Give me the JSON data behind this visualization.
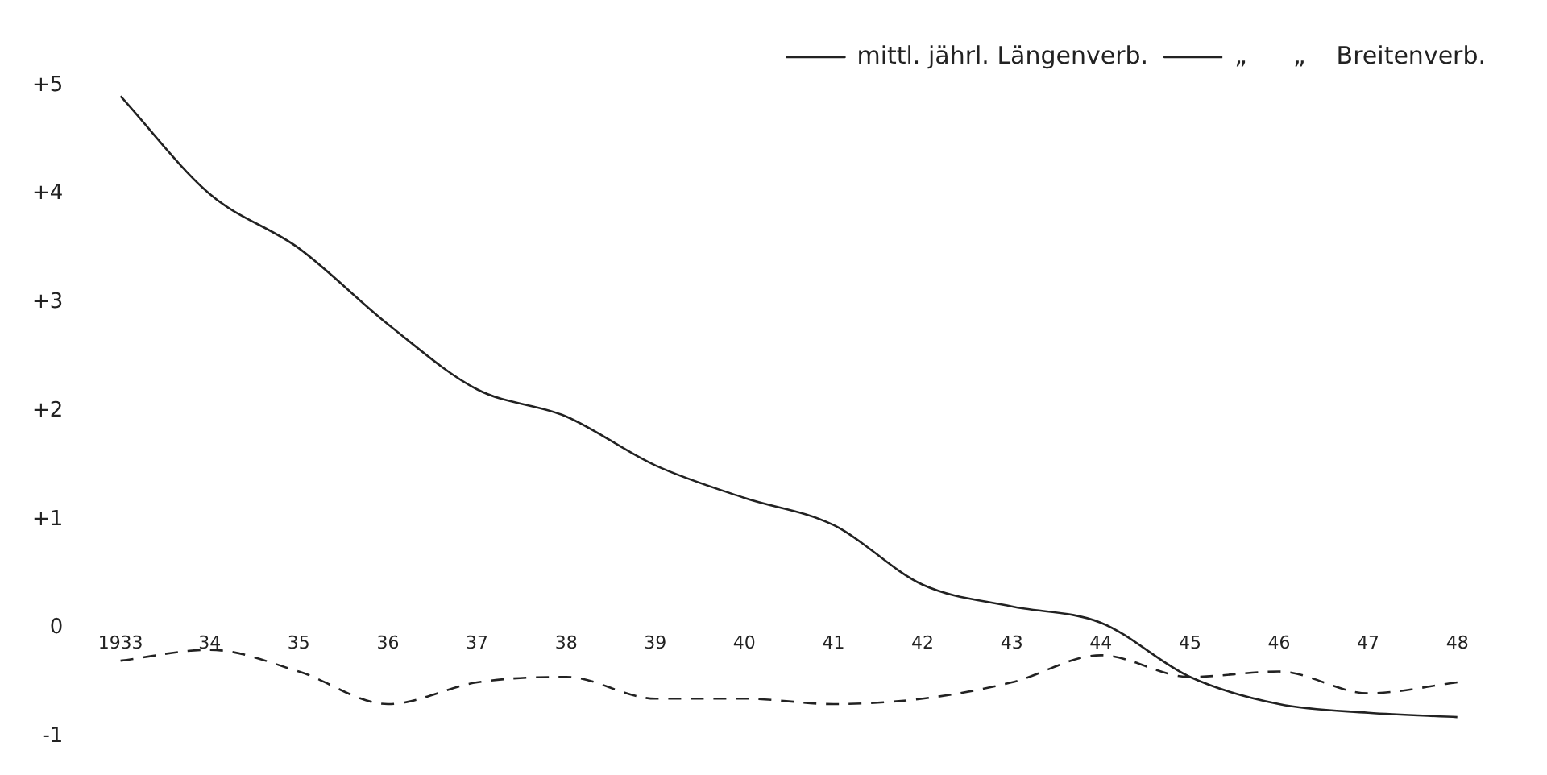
{
  "chart_data": {
    "type": "line",
    "categories": [
      "1933",
      "34",
      "35",
      "36",
      "37",
      "38",
      "39",
      "40",
      "41",
      "42",
      "43",
      "44",
      "45",
      "46",
      "47",
      "48"
    ],
    "series": [
      {
        "name": "mittl. jährl. Längenverb.",
        "color": "#222222",
        "line_style": "solid",
        "values": [
          4.9,
          4.0,
          3.5,
          2.8,
          2.2,
          1.95,
          1.5,
          1.2,
          0.95,
          0.4,
          0.2,
          0.05,
          -0.45,
          -0.7,
          -0.78,
          -0.82
        ]
      },
      {
        "name": "„      „    Breitenverb.",
        "color": "#222222",
        "line_style": "dashed",
        "values": [
          -0.3,
          -0.2,
          -0.4,
          -0.7,
          -0.5,
          -0.45,
          -0.65,
          -0.65,
          -0.7,
          -0.65,
          -0.5,
          -0.25,
          -0.45,
          -0.4,
          -0.6,
          -0.5
        ]
      }
    ],
    "ylim": [
      -1,
      5
    ],
    "yticks": [
      {
        "value": 5,
        "label": "+5"
      },
      {
        "value": 4,
        "label": "+4"
      },
      {
        "value": 3,
        "label": "+3"
      },
      {
        "value": 2,
        "label": "+2"
      },
      {
        "value": 1,
        "label": "+1"
      },
      0,
      -1
    ],
    "grid": false,
    "legend": "top right",
    "marker": "none"
  }
}
